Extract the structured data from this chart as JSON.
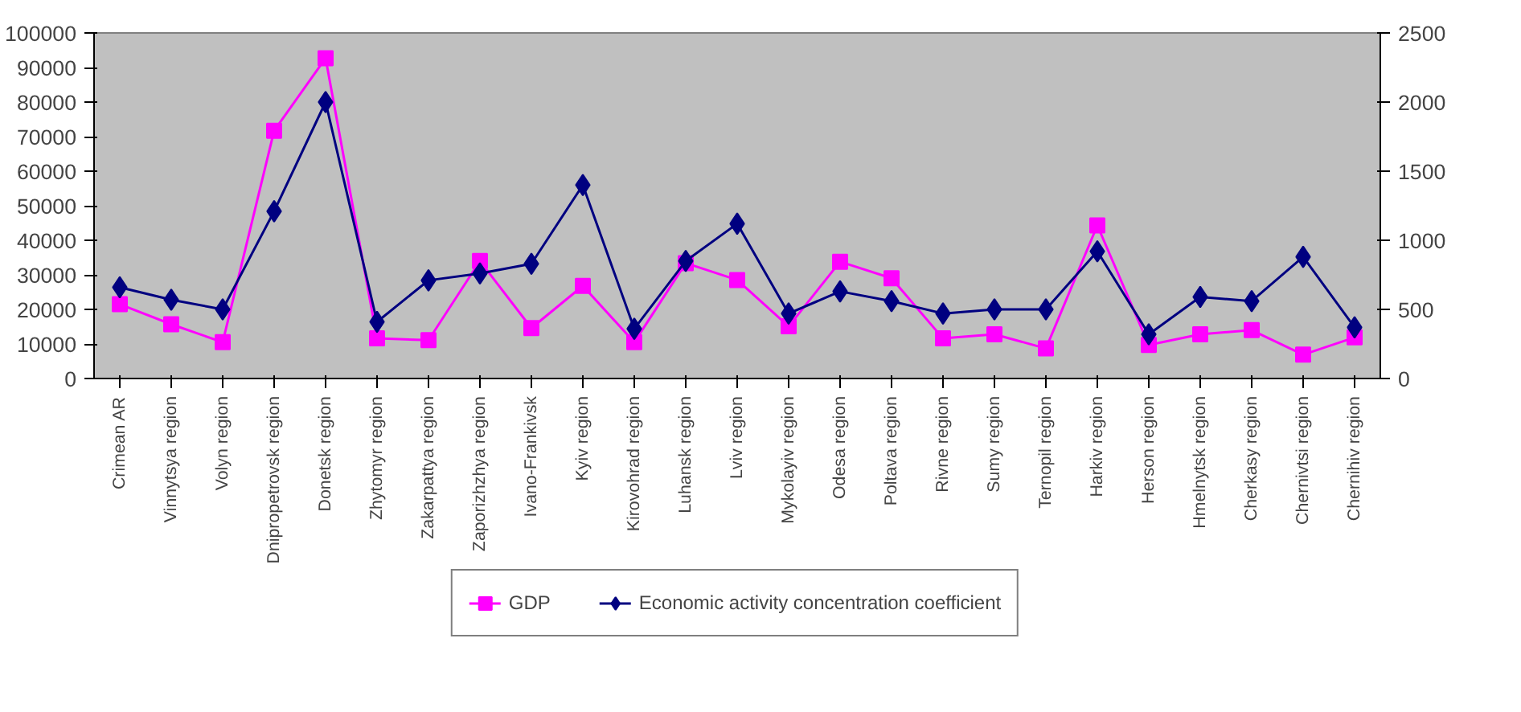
{
  "chart_data": {
    "type": "line",
    "categories": [
      "Crimean AR",
      "Vinnytsya region",
      "Volyn region",
      "Dnipropetrovsk region",
      "Donetsk region",
      "Zhytomyr region",
      "Zakarpattya region",
      "Zaporizhzhya region",
      "Ivano-Frankivsk",
      "Kyiv region",
      "Kirovohrad region",
      "Luhansk region",
      "Lviv region",
      "Mykolayiv region",
      "Odesa region",
      "Poltava region",
      "Rivne region",
      "Sumy region",
      "Ternopil region",
      "Harkiv region",
      "Herson region",
      "Hmelnytsk region",
      "Cherkasy region",
      "Chernivtsi region",
      "Chernihiv region"
    ],
    "series": [
      {
        "name": "GDP",
        "color": "#ff00ff",
        "marker": "square",
        "values": [
          21500,
          15700,
          10500,
          71700,
          92700,
          11600,
          11100,
          34000,
          14600,
          26800,
          10500,
          33400,
          28500,
          15100,
          33800,
          29000,
          11600,
          12800,
          8700,
          44300,
          9700,
          12800,
          14000,
          6900,
          11900
        ]
      },
      {
        "name": "Economic activity concentration coefficient",
        "color": "#000080",
        "marker": "diamond",
        "axis": "y2",
        "values": [
          660,
          570,
          500,
          1210,
          2000,
          410,
          710,
          760,
          830,
          1400,
          360,
          850,
          1120,
          470,
          630,
          560,
          470,
          500,
          500,
          920,
          320,
          590,
          560,
          880,
          370
        ]
      }
    ],
    "ylim": [
      0,
      100000
    ],
    "yticks": [
      0,
      10000,
      20000,
      30000,
      40000,
      50000,
      60000,
      70000,
      80000,
      90000,
      100000
    ],
    "y2lim": [
      0,
      2500
    ],
    "y2ticks": [
      0,
      500,
      1000,
      1500,
      2000,
      2500
    ],
    "grid": false,
    "legend": "bottom"
  }
}
